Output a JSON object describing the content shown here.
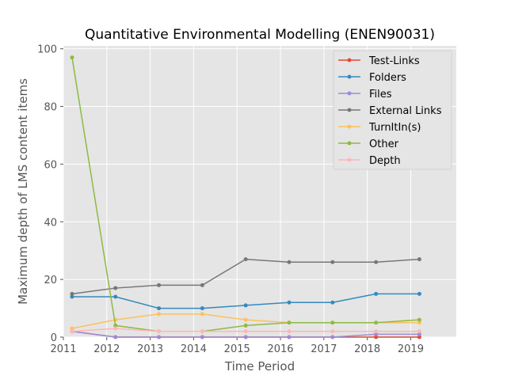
{
  "chart_data": {
    "type": "line",
    "title": "Quantitative Environmental Modelling (ENEN90031)",
    "xlabel": "Time Period",
    "ylabel": "Maximum depth of LMS content items",
    "x_ticks": [
      "2011",
      "2012",
      "2013",
      "2014",
      "2015",
      "2016",
      "2017",
      "2018",
      "2019"
    ],
    "y_ticks": [
      "0",
      "20",
      "40",
      "60",
      "80",
      "100"
    ],
    "xlim": [
      2011,
      2020.05
    ],
    "ylim": [
      0,
      101
    ],
    "grid": true,
    "legend_position": "top-right",
    "x": [
      2011.2,
      2012.2,
      2013.2,
      2014.2,
      2015.2,
      2016.2,
      2017.2,
      2018.2,
      2019.2
    ],
    "series": [
      {
        "name": "Test-Links",
        "color": "#E24A33",
        "values": [
          2,
          0,
          0,
          0,
          0,
          0,
          0,
          0,
          0
        ]
      },
      {
        "name": "Folders",
        "color": "#348ABD",
        "values": [
          14,
          14,
          10,
          10,
          11,
          12,
          12,
          15,
          15
        ]
      },
      {
        "name": "Files",
        "color": "#988ED5",
        "values": [
          2,
          0,
          0,
          0,
          0,
          0,
          0,
          1,
          1
        ]
      },
      {
        "name": "External Links",
        "color": "#777777",
        "values": [
          15,
          17,
          18,
          18,
          27,
          26,
          26,
          26,
          27
        ]
      },
      {
        "name": "TurnItIn(s)",
        "color": "#FBC15E",
        "values": [
          3,
          6,
          8,
          8,
          6,
          5,
          5,
          5,
          5
        ]
      },
      {
        "name": "Other",
        "color": "#8EBA42",
        "values": [
          97,
          4,
          2,
          2,
          4,
          5,
          5,
          5,
          6
        ]
      },
      {
        "name": "Depth",
        "color": "#FFB5B8",
        "values": [
          2,
          3,
          2,
          2,
          2,
          2,
          2,
          2,
          2
        ]
      }
    ]
  }
}
